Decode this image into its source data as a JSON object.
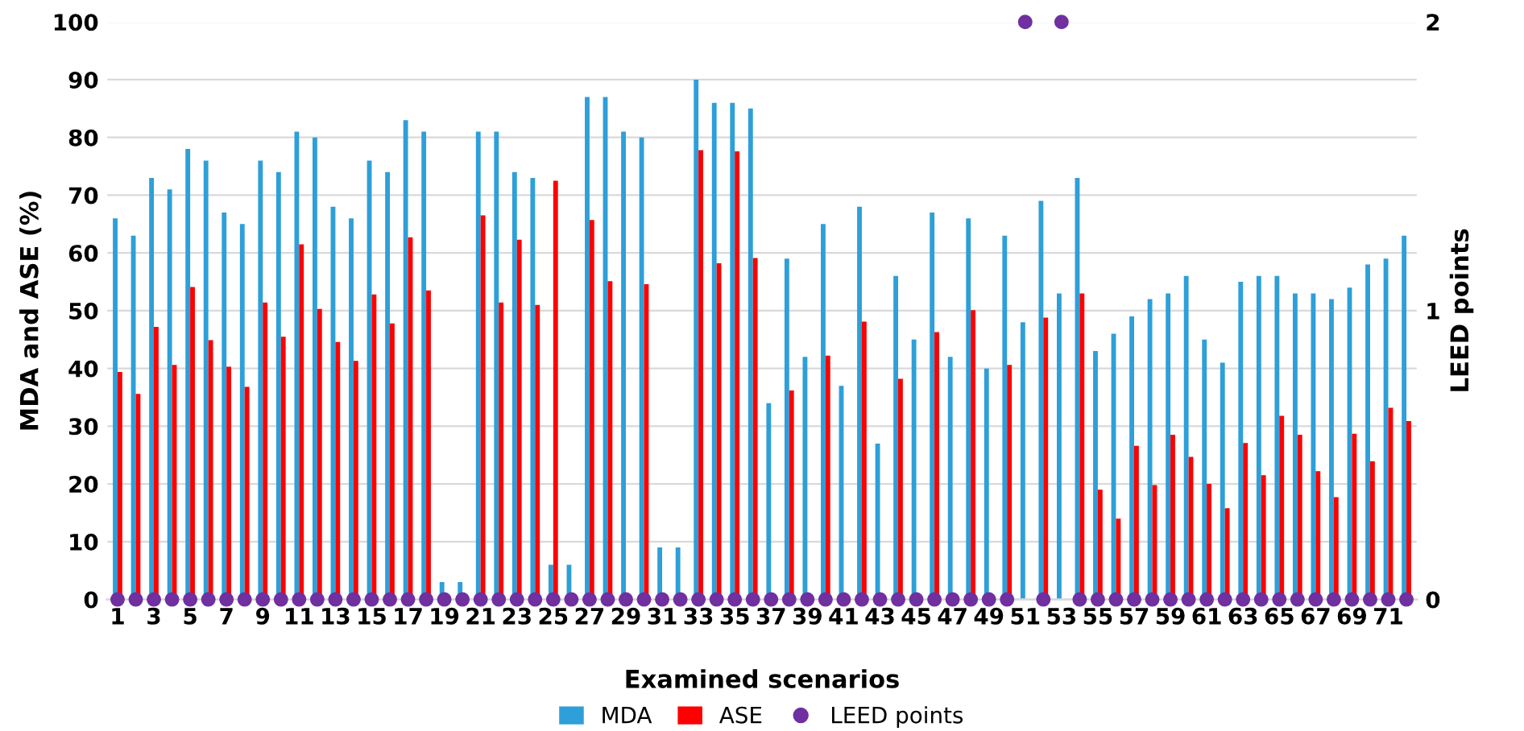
{
  "chart_data": {
    "type": "bar",
    "xlabel": "Examined scenarios",
    "ylabel": "MDA and ASE (%)",
    "y2label": "LEED points",
    "categories": [
      "1",
      null,
      "3",
      null,
      "5",
      null,
      "7",
      null,
      "9",
      null,
      "11",
      null,
      "13",
      null,
      "15",
      null,
      "17",
      null,
      "19",
      null,
      "21",
      null,
      "23",
      null,
      "25",
      null,
      "27",
      null,
      "29",
      null,
      "31",
      null,
      "33",
      null,
      "35",
      null,
      "37",
      null,
      "39",
      null,
      "41",
      null,
      "43",
      null,
      "45",
      null,
      "47",
      null,
      "49",
      null,
      "51",
      null,
      "53",
      null,
      "55",
      null,
      "57",
      null,
      "59",
      null,
      "61",
      null,
      "63",
      null,
      "65",
      null,
      "67",
      null,
      "69",
      null,
      "71",
      null
    ],
    "series": [
      {
        "name": "MDA",
        "color": "#2e9fd8",
        "values": [
          66,
          63,
          73,
          71,
          78,
          76,
          67,
          65,
          76,
          74,
          81,
          80,
          68,
          66,
          76,
          74,
          83,
          81,
          3,
          3,
          81,
          81,
          74,
          73,
          6,
          6,
          87,
          87,
          81,
          80,
          9,
          9,
          90,
          86,
          86,
          85,
          34,
          59,
          42,
          65,
          37,
          68,
          27,
          56,
          45,
          67,
          42,
          66,
          40,
          63,
          48,
          69,
          53,
          73,
          43,
          46,
          49,
          52,
          53,
          56,
          45,
          41,
          55,
          56,
          56,
          53,
          53,
          52,
          54,
          58,
          59,
          63
        ]
      },
      {
        "name": "ASE",
        "color": "#ff0000",
        "values": [
          39.4,
          35.6,
          47.2,
          40.6,
          54.1,
          44.9,
          40.3,
          36.8,
          51.4,
          45.5,
          61.5,
          50.3,
          44.6,
          41.3,
          52.8,
          47.8,
          62.7,
          53.5,
          0,
          0,
          66.5,
          51.4,
          62.3,
          51.0,
          72.5,
          0,
          65.7,
          55.1,
          0,
          54.6,
          0,
          0,
          77.8,
          58.2,
          77.6,
          59.1,
          0,
          36.2,
          0,
          42.2,
          0,
          48.1,
          0,
          38.2,
          0,
          46.3,
          0,
          50.1,
          0,
          40.6,
          0,
          48.8,
          0,
          53.0,
          19,
          14,
          26.6,
          19.8,
          28.5,
          24.7,
          20,
          15.8,
          27.1,
          21.5,
          31.8,
          28.5,
          22.2,
          17.7,
          28.7,
          23.9,
          33.2,
          30.9
        ]
      },
      {
        "name": "LEED points",
        "type": "scatter",
        "axis": "y2",
        "color": "#7030a0",
        "marker": "circle",
        "values": [
          0,
          0,
          0,
          0,
          0,
          0,
          0,
          0,
          0,
          0,
          0,
          0,
          0,
          0,
          0,
          0,
          0,
          0,
          0,
          0,
          0,
          0,
          0,
          0,
          0,
          0,
          0,
          0,
          0,
          0,
          0,
          0,
          0,
          0,
          0,
          0,
          0,
          0,
          0,
          0,
          0,
          0,
          0,
          0,
          0,
          0,
          0,
          0,
          0,
          0,
          2,
          0,
          2,
          0,
          0,
          0,
          0,
          0,
          0,
          0,
          0,
          0,
          0,
          0,
          0,
          0,
          0,
          0,
          0,
          0,
          0,
          0
        ]
      }
    ],
    "ylim": [
      0,
      100
    ],
    "yticks": [
      0,
      10,
      20,
      30,
      40,
      50,
      60,
      70,
      80,
      90,
      100
    ],
    "y2lim": [
      0,
      2
    ],
    "y2ticks": [
      0,
      1,
      2
    ],
    "grid": "y",
    "legend": "bottom"
  }
}
